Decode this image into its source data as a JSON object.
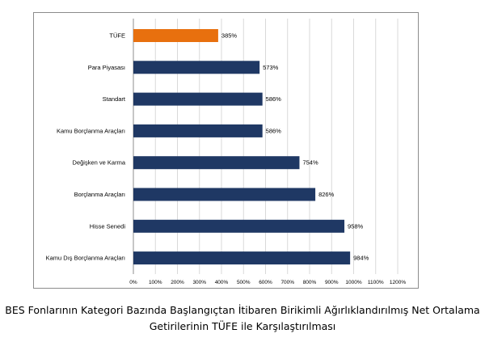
{
  "caption": {
    "line1": "BES Fonlarının Kategori Bazında Başlangıçtan İtibaren Birikimli Ağırlıklandırılmış Net Ortalama",
    "line2": "Getirilerinin TÜFE ile Karşılaştırılması"
  },
  "colors": {
    "highlight": "#E8700E",
    "bar": "#1F3864",
    "grid": "#D9D9D9",
    "axis": "#8C8C8C",
    "text": "#000000"
  },
  "chart_data": {
    "type": "bar",
    "orientation": "horizontal",
    "title": "",
    "xlabel": "",
    "ylabel": "",
    "grid": true,
    "legend": "none",
    "xlim": [
      0,
      1200
    ],
    "x_ticks": [
      0,
      100,
      200,
      300,
      400,
      500,
      600,
      700,
      800,
      900,
      1000,
      1100,
      1200
    ],
    "x_tick_labels": [
      "0%",
      "100%",
      "200%",
      "300%",
      "400%",
      "500%",
      "600%",
      "700%",
      "800%",
      "900%",
      "1000%",
      "1100%",
      "1200%"
    ],
    "categories": [
      "TÜFE",
      "Para Piyasası",
      "Standart",
      "Kamu Borçlanma Araçları",
      "Değişken ve Karma",
      "Borçlanma Araçları",
      "Hisse Senedi",
      "Kamu Dış Borçlanma Araçları"
    ],
    "values": [
      385,
      573,
      586,
      586,
      754,
      826,
      958,
      984
    ],
    "data_labels": [
      "385%",
      "573%",
      "586%",
      "586%",
      "754%",
      "826%",
      "958%",
      "984%"
    ],
    "highlight_category": "TÜFE"
  }
}
